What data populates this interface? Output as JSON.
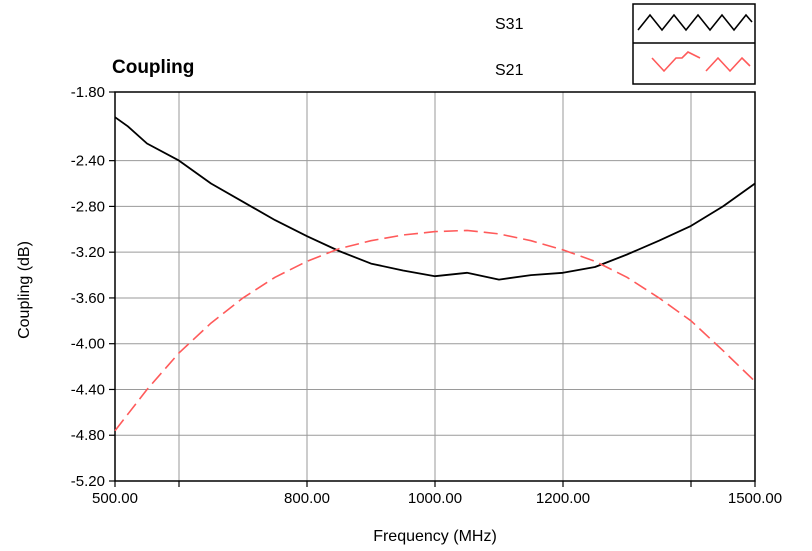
{
  "chart_data": {
    "type": "line",
    "title": "Coupling",
    "xlabel": "Frequency (MHz)",
    "ylabel": "Coupling (dB)",
    "xlim": [
      500,
      1500
    ],
    "ylim": [
      -5.2,
      -1.8
    ],
    "x_tick_labels": [
      "500.00",
      "800.00",
      "1000.00",
      "1200.00",
      "1500.00"
    ],
    "x_tick_values": [
      500,
      800,
      1000,
      1200,
      1500
    ],
    "x_grid_values": [
      500,
      600,
      800,
      1000,
      1200,
      1400,
      1500
    ],
    "y_tick_labels": [
      "-1.80",
      "-2.40",
      "-2.80",
      "-3.20",
      "-3.60",
      "-4.00",
      "-4.40",
      "-4.80",
      "-5.20"
    ],
    "y_tick_values": [
      -1.8,
      -2.4,
      -2.8,
      -3.2,
      -3.6,
      -4.0,
      -4.4,
      -4.8,
      -5.2
    ],
    "grid": true,
    "legend_position": "top-right",
    "series": [
      {
        "name": "S31",
        "color": "#000000",
        "style": "solid",
        "x": [
          500,
          520,
          550,
          600,
          650,
          700,
          750,
          800,
          850,
          900,
          950,
          1000,
          1050,
          1100,
          1150,
          1200,
          1250,
          1300,
          1350,
          1400,
          1450,
          1500
        ],
        "y": [
          -2.02,
          -2.1,
          -2.25,
          -2.4,
          -2.6,
          -2.76,
          -2.92,
          -3.06,
          -3.19,
          -3.3,
          -3.36,
          -3.41,
          -3.38,
          -3.44,
          -3.4,
          -3.38,
          -3.33,
          -3.22,
          -3.1,
          -2.97,
          -2.8,
          -2.6
        ]
      },
      {
        "name": "S21",
        "color": "#ff5a5a",
        "style": "dashed",
        "x": [
          500,
          550,
          600,
          650,
          700,
          750,
          800,
          850,
          900,
          950,
          1000,
          1050,
          1100,
          1150,
          1200,
          1250,
          1300,
          1350,
          1400,
          1450,
          1500
        ],
        "y": [
          -4.76,
          -4.4,
          -4.08,
          -3.82,
          -3.6,
          -3.42,
          -3.28,
          -3.17,
          -3.1,
          -3.05,
          -3.02,
          -3.01,
          -3.04,
          -3.1,
          -3.18,
          -3.28,
          -3.42,
          -3.6,
          -3.8,
          -4.06,
          -4.33
        ]
      }
    ]
  }
}
